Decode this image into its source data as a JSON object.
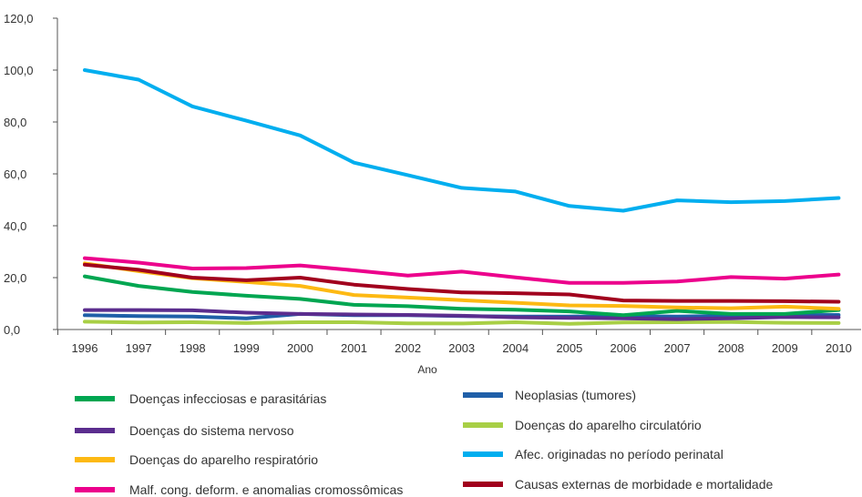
{
  "chart_data": {
    "type": "line",
    "xlabel": "Ano",
    "ylabel": "",
    "ylim": [
      0,
      120
    ],
    "y_ticks": [
      "0,0",
      "20,0",
      "40,0",
      "60,0",
      "80,0",
      "100,0",
      "120,0"
    ],
    "categories": [
      "1996",
      "1997",
      "1998",
      "1999",
      "2000",
      "2001",
      "2002",
      "2003",
      "2004",
      "2005",
      "2006",
      "2007",
      "2008",
      "2009",
      "2010"
    ],
    "grid": false,
    "legend_position": "bottom",
    "series": [
      {
        "name": "Doenças infecciosas e parasitárias",
        "color": "#00a651",
        "values": [
          20.5,
          16.8,
          14.5,
          13.0,
          11.8,
          9.5,
          9.0,
          8.0,
          7.6,
          7.0,
          5.5,
          7.2,
          6.0,
          6.0,
          7.5
        ]
      },
      {
        "name": "Neoplasias (tumores)",
        "color": "#1f5fa8",
        "values": [
          5.5,
          5.2,
          5.0,
          4.3,
          6.0,
          5.5,
          5.5,
          5.2,
          5.0,
          5.0,
          5.2,
          5.0,
          5.3,
          5.5,
          5.6
        ]
      },
      {
        "name": "Doenças do sistema nervoso",
        "color": "#5b2d8e",
        "values": [
          7.5,
          7.5,
          7.4,
          6.5,
          6.0,
          5.8,
          5.6,
          5.3,
          4.7,
          4.5,
          4.3,
          4.0,
          4.3,
          4.8,
          4.7
        ]
      },
      {
        "name": "Doenças do aparelho circulatório",
        "color": "#a8cf45",
        "values": [
          3.0,
          2.7,
          2.8,
          2.5,
          2.8,
          2.8,
          2.4,
          2.3,
          2.8,
          2.2,
          2.7,
          2.8,
          2.9,
          2.6,
          2.5
        ]
      },
      {
        "name": "Doenças do aparelho respiratório",
        "color": "#fdb913",
        "values": [
          25.5,
          22.5,
          19.8,
          18.3,
          16.8,
          13.3,
          12.3,
          11.3,
          10.3,
          9.3,
          9.1,
          8.5,
          8.2,
          8.8,
          8.0
        ]
      },
      {
        "name": "Afec. originadas no período perinatal",
        "color": "#00aeef",
        "values": [
          100.0,
          96.3,
          86.0,
          80.5,
          74.8,
          64.3,
          59.5,
          54.6,
          53.2,
          47.6,
          45.8,
          49.8,
          49.1,
          49.5,
          50.7
        ]
      },
      {
        "name": "Malf. cong. deform. e anomalias cromossômicas",
        "color": "#ec008c",
        "values": [
          27.5,
          25.8,
          23.5,
          23.7,
          24.7,
          22.8,
          20.8,
          22.3,
          20.1,
          18.0,
          18.0,
          18.5,
          20.2,
          19.6,
          21.2
        ]
      },
      {
        "name": "Causas externas de morbidade e mortalidade",
        "color": "#a1001d",
        "values": [
          25.0,
          23.0,
          20.0,
          19.0,
          20.0,
          17.3,
          15.6,
          14.3,
          14.0,
          13.5,
          11.2,
          11.0,
          11.0,
          10.9,
          10.7
        ]
      }
    ]
  }
}
